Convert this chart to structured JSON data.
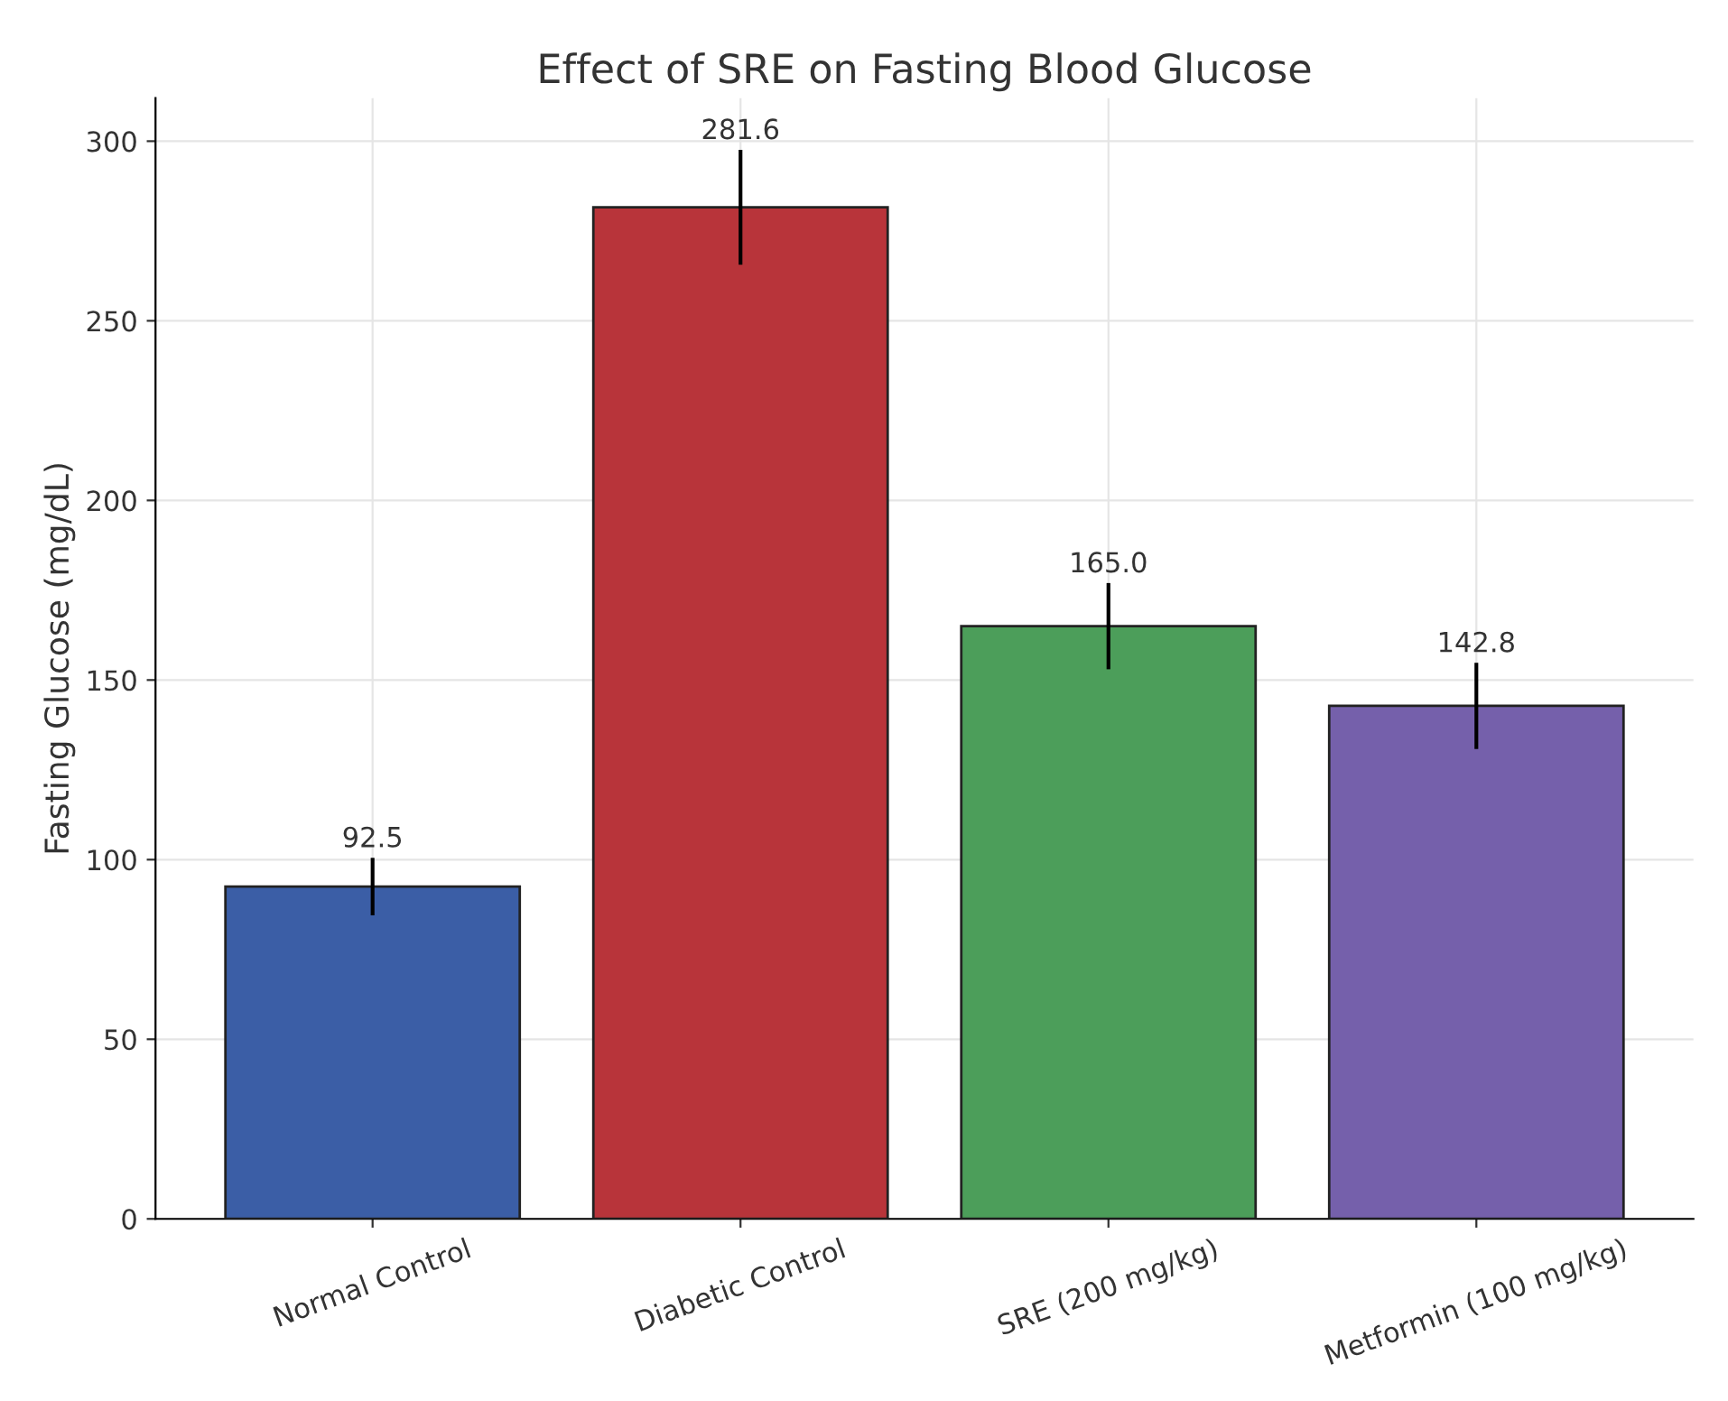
{
  "chart_data": {
    "type": "bar",
    "title": "Effect of SRE on Fasting Blood Glucose",
    "ylabel": "Fasting Glucose (mg/dL)",
    "categories": [
      "Normal Control",
      "Diabetic Control",
      "SRE (200 mg/kg)",
      "Metformin (100 mg/kg)"
    ],
    "values": [
      92.5,
      281.6,
      165.0,
      142.8
    ],
    "errors": [
      8,
      16,
      12,
      12
    ],
    "colors": [
      "#3b5ea6",
      "#b8343a",
      "#4c9e5a",
      "#7560ab"
    ],
    "value_labels": [
      "92.5",
      "281.6",
      "165.0",
      "142.8"
    ],
    "ylim": [
      0,
      312
    ],
    "yticks": [
      0,
      50,
      100,
      150,
      200,
      250,
      300
    ],
    "grid": true
  }
}
